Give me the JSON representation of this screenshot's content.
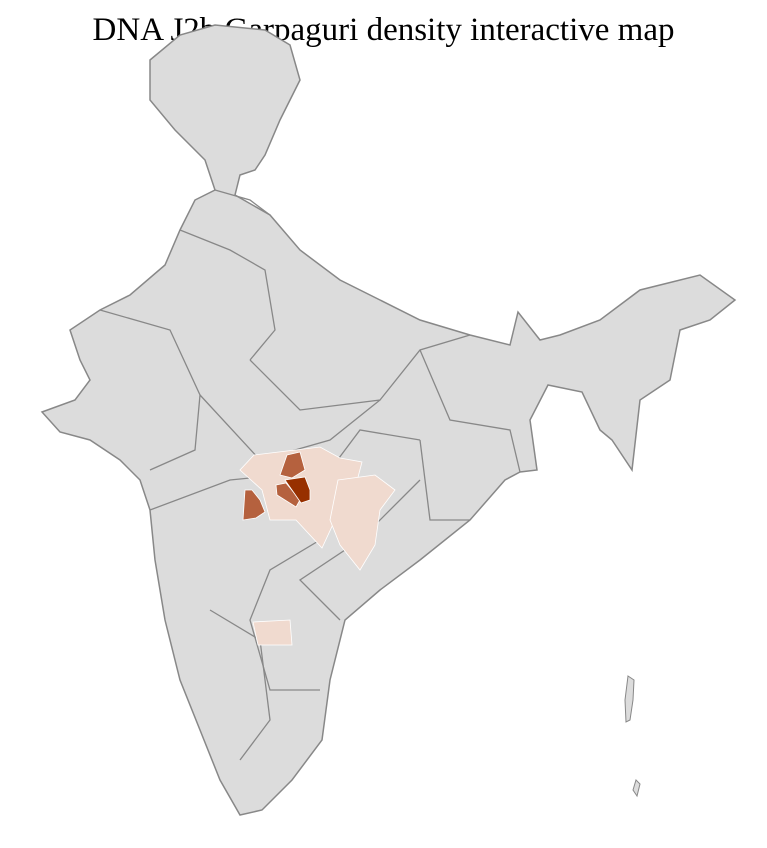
{
  "title": "DNA J2b Garpaguri density interactive map",
  "colors": {
    "land": "#dcdcdc",
    "district_border": "#ffffff",
    "state_border": "#888888",
    "density_low": "#f0dacf",
    "density_mid": "#b5613e",
    "density_high": "#973000"
  }
}
